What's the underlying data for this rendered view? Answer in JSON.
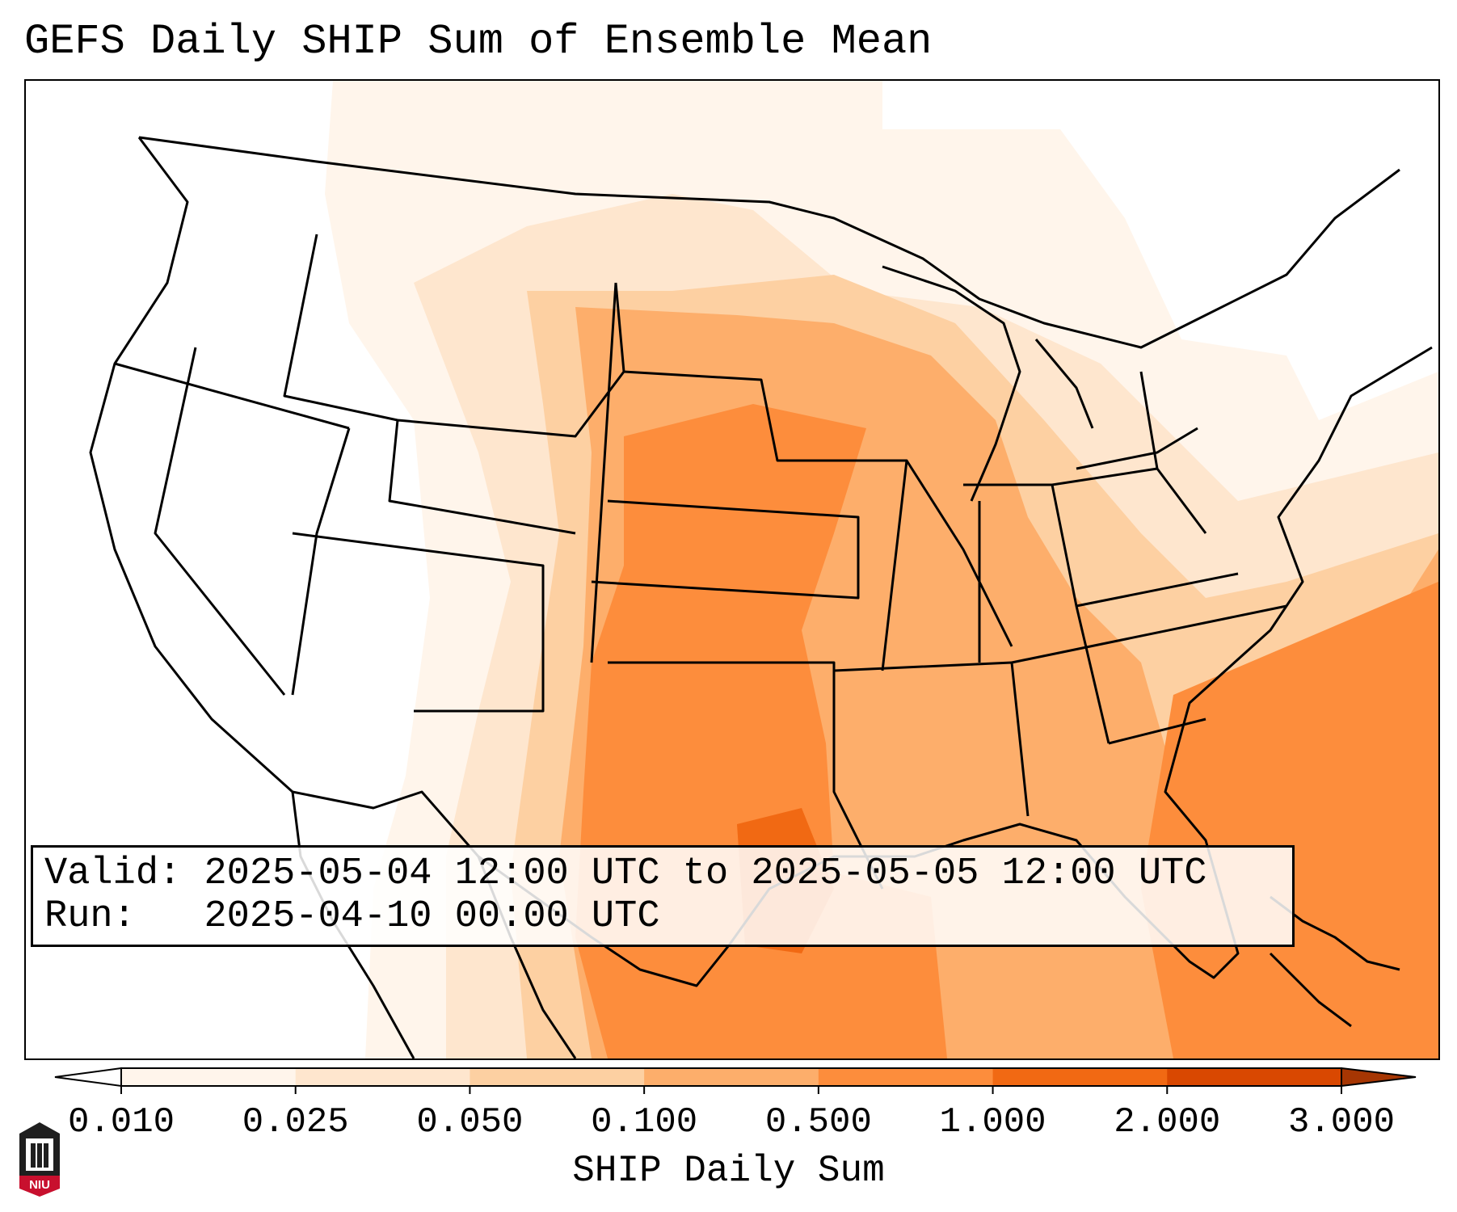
{
  "title": "GEFS Daily SHIP Sum of Ensemble Mean",
  "info": {
    "valid_label": "Valid:",
    "valid_value": "2025-05-04 12:00 UTC to 2025-05-05 12:00 UTC",
    "run_label": "Run:",
    "run_value": "2025-04-10 00:00 UTC"
  },
  "colorbar": {
    "label": "SHIP Daily Sum",
    "ticks": [
      "0.010",
      "0.025",
      "0.050",
      "0.100",
      "0.500",
      "1.000",
      "2.000",
      "3.000"
    ],
    "colors": [
      "#fff5eb",
      "#fee6ce",
      "#fdd0a2",
      "#fdae6b",
      "#fd8d3c",
      "#f16913",
      "#d94801",
      "#a63603"
    ],
    "extend": "both"
  },
  "logo": {
    "text": "NIU"
  }
}
